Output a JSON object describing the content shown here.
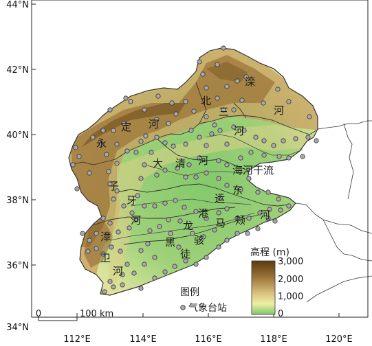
{
  "axes": {
    "x_ticks": [
      "112°E",
      "114°E",
      "116°E",
      "118°E",
      "120°E"
    ],
    "y_ticks": [
      "44°N",
      "42°N",
      "40°N",
      "38°N",
      "36°N",
      "34°N"
    ]
  },
  "river_labels": {
    "luan": [
      "滦",
      "河"
    ],
    "bei_san": [
      "北",
      "三",
      "河"
    ],
    "yongding": [
      "永",
      "定",
      "河"
    ],
    "daqing": [
      "大",
      "清",
      "河"
    ],
    "hai_gan": "海河干流",
    "ziya": [
      "子",
      "牙",
      "河"
    ],
    "yun_dong": [
      "运",
      "东"
    ],
    "ma_jia": [
      "港",
      "马",
      "颊",
      "河"
    ],
    "zhang_wei": [
      "漳",
      "卫",
      "河"
    ],
    "heilonggang": [
      "龙",
      "黑"
    ],
    "tuhai": [
      "骇",
      "徒"
    ]
  },
  "legend": {
    "title": "图例",
    "station_label": "气象台站",
    "station_color": "#a9a9a9"
  },
  "elevation_legend": {
    "title": "高程 (m)",
    "ticks": [
      "3,000",
      "2,000",
      "1,000",
      "0"
    ],
    "colors": [
      "#5a3a10",
      "#9a7236",
      "#d8c07e",
      "#eeeea4",
      "#7fc66a"
    ]
  },
  "scalebar": {
    "start": "0",
    "end": "100 km"
  },
  "stations": [
    [
      290,
      90
    ],
    [
      316,
      94
    ],
    [
      325,
      70
    ],
    [
      295,
      108
    ],
    [
      330,
      126
    ],
    [
      345,
      118
    ],
    [
      358,
      112
    ],
    [
      352,
      146
    ],
    [
      383,
      150
    ],
    [
      404,
      130
    ],
    [
      420,
      148
    ],
    [
      450,
      170
    ],
    [
      300,
      128
    ],
    [
      316,
      143
    ],
    [
      325,
      160
    ],
    [
      340,
      160
    ],
    [
      300,
      170
    ],
    [
      312,
      182
    ],
    [
      308,
      195
    ],
    [
      320,
      190
    ],
    [
      330,
      210
    ],
    [
      340,
      185
    ],
    [
      355,
      190
    ],
    [
      372,
      200
    ],
    [
      384,
      205
    ],
    [
      398,
      212
    ],
    [
      412,
      205
    ],
    [
      430,
      202
    ],
    [
      448,
      200
    ],
    [
      460,
      205
    ],
    [
      440,
      228
    ],
    [
      420,
      230
    ],
    [
      406,
      228
    ],
    [
      384,
      226
    ],
    [
      365,
      222
    ],
    [
      350,
      230
    ],
    [
      330,
      240
    ],
    [
      318,
      234
    ],
    [
      300,
      212
    ],
    [
      290,
      200
    ],
    [
      270,
      210
    ],
    [
      252,
      213
    ],
    [
      240,
      208
    ],
    [
      228,
      200
    ],
    [
      212,
      198
    ],
    [
      205,
      206
    ],
    [
      198,
      222
    ],
    [
      220,
      222
    ],
    [
      183,
      143
    ],
    [
      190,
      148
    ],
    [
      210,
      160
    ],
    [
      228,
      174
    ],
    [
      245,
      180
    ],
    [
      256,
      166
    ],
    [
      270,
      148
    ],
    [
      282,
      162
    ],
    [
      250,
      150
    ],
    [
      230,
      140
    ],
    [
      160,
      160
    ],
    [
      165,
      190
    ],
    [
      150,
      190
    ],
    [
      135,
      200
    ],
    [
      148,
      210
    ],
    [
      155,
      225
    ],
    [
      170,
      210
    ],
    [
      180,
      180
    ],
    [
      185,
      220
    ],
    [
      170,
      238
    ],
    [
      158,
      250
    ],
    [
      160,
      268
    ],
    [
      165,
      290
    ],
    [
      170,
      278
    ],
    [
      180,
      300
    ],
    [
      192,
      310
    ],
    [
      200,
      285
    ],
    [
      205,
      260
    ],
    [
      210,
      240
    ],
    [
      228,
      255
    ],
    [
      240,
      248
    ],
    [
      258,
      245
    ],
    [
      270,
      258
    ],
    [
      285,
      258
    ],
    [
      300,
      252
    ],
    [
      318,
      260
    ],
    [
      330,
      270
    ],
    [
      350,
      276
    ],
    [
      362,
      260
    ],
    [
      375,
      280
    ],
    [
      390,
      280
    ],
    [
      405,
      290
    ],
    [
      420,
      300
    ],
    [
      408,
      306
    ],
    [
      392,
      305
    ],
    [
      378,
      310
    ],
    [
      362,
      318
    ],
    [
      345,
      318
    ],
    [
      330,
      304
    ],
    [
      318,
      310
    ],
    [
      300,
      318
    ],
    [
      285,
      308
    ],
    [
      268,
      302
    ],
    [
      255,
      292
    ],
    [
      240,
      296
    ],
    [
      225,
      300
    ],
    [
      210,
      300
    ],
    [
      198,
      320
    ],
    [
      188,
      332
    ],
    [
      172,
      338
    ],
    [
      160,
      325
    ],
    [
      150,
      318
    ],
    [
      140,
      340
    ],
    [
      130,
      350
    ],
    [
      120,
      340
    ],
    [
      128,
      366
    ],
    [
      140,
      362
    ],
    [
      150,
      370
    ],
    [
      162,
      360
    ],
    [
      175,
      366
    ],
    [
      185,
      385
    ],
    [
      195,
      398
    ],
    [
      178,
      400
    ],
    [
      160,
      410
    ],
    [
      152,
      425
    ],
    [
      165,
      418
    ],
    [
      178,
      415
    ],
    [
      205,
      420
    ],
    [
      225,
      405
    ],
    [
      240,
      396
    ],
    [
      254,
      388
    ],
    [
      270,
      380
    ],
    [
      285,
      385
    ],
    [
      300,
      375
    ],
    [
      318,
      360
    ],
    [
      330,
      350
    ],
    [
      345,
      340
    ],
    [
      360,
      340
    ],
    [
      375,
      333
    ],
    [
      390,
      318
    ],
    [
      400,
      322
    ],
    [
      260,
      360
    ],
    [
      248,
      340
    ],
    [
      232,
      330
    ],
    [
      218,
      336
    ],
    [
      215,
      355
    ],
    [
      225,
      375
    ],
    [
      210,
      385
    ],
    [
      205,
      365
    ],
    [
      280,
      340
    ],
    [
      296,
      345
    ],
    [
      312,
      335
    ],
    [
      262,
      322
    ],
    [
      245,
      320
    ],
    [
      320,
      288
    ],
    [
      290,
      230
    ],
    [
      275,
      240
    ],
    [
      110,
      215
    ],
    [
      115,
      228
    ],
    [
      106,
      240
    ],
    [
      130,
      252
    ],
    [
      112,
      275
    ],
    [
      278,
      190
    ]
  ]
}
